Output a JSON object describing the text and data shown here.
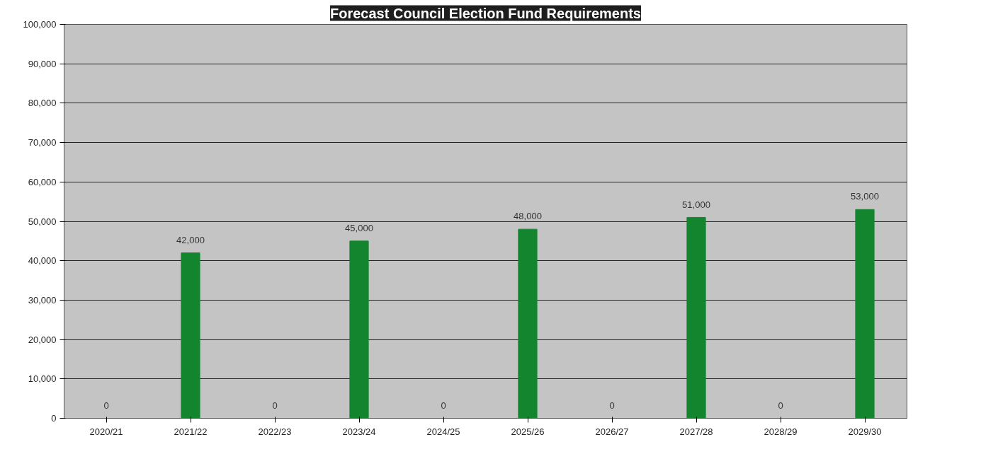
{
  "chart_data": {
    "type": "bar",
    "title": "Forecast Council Election Fund Requirements",
    "categories": [
      "2020/21",
      "2021/22",
      "2022/23",
      "2023/24",
      "2024/25",
      "2025/26",
      "2026/27",
      "2027/28",
      "2028/29",
      "2029/30"
    ],
    "values": [
      0,
      42000,
      0,
      45000,
      0,
      48000,
      0,
      51000,
      0,
      53000
    ],
    "value_labels": [
      "0",
      "42,000",
      "0",
      "45,000",
      "0",
      "48,000",
      "0",
      "51,000",
      "0",
      "53,000"
    ],
    "color": "#13852f",
    "ylim": [
      0,
      100000
    ],
    "yticks": [
      0,
      {
        "value": 10000,
        "label": "10,000"
      },
      {
        "value": 20000,
        "label": "20,000"
      },
      {
        "value": 30000,
        "label": "30,000"
      },
      {
        "value": 40000,
        "label": "40,000"
      },
      {
        "value": 50000,
        "label": "50,000"
      },
      {
        "value": 60000,
        "label": "60,000"
      },
      {
        "value": 70000,
        "label": "70,000"
      },
      {
        "value": 80000,
        "label": "80,000"
      },
      {
        "value": 90000,
        "label": "90,000"
      },
      {
        "value": 100000,
        "label": "100,000"
      }
    ],
    "grid": "y"
  }
}
